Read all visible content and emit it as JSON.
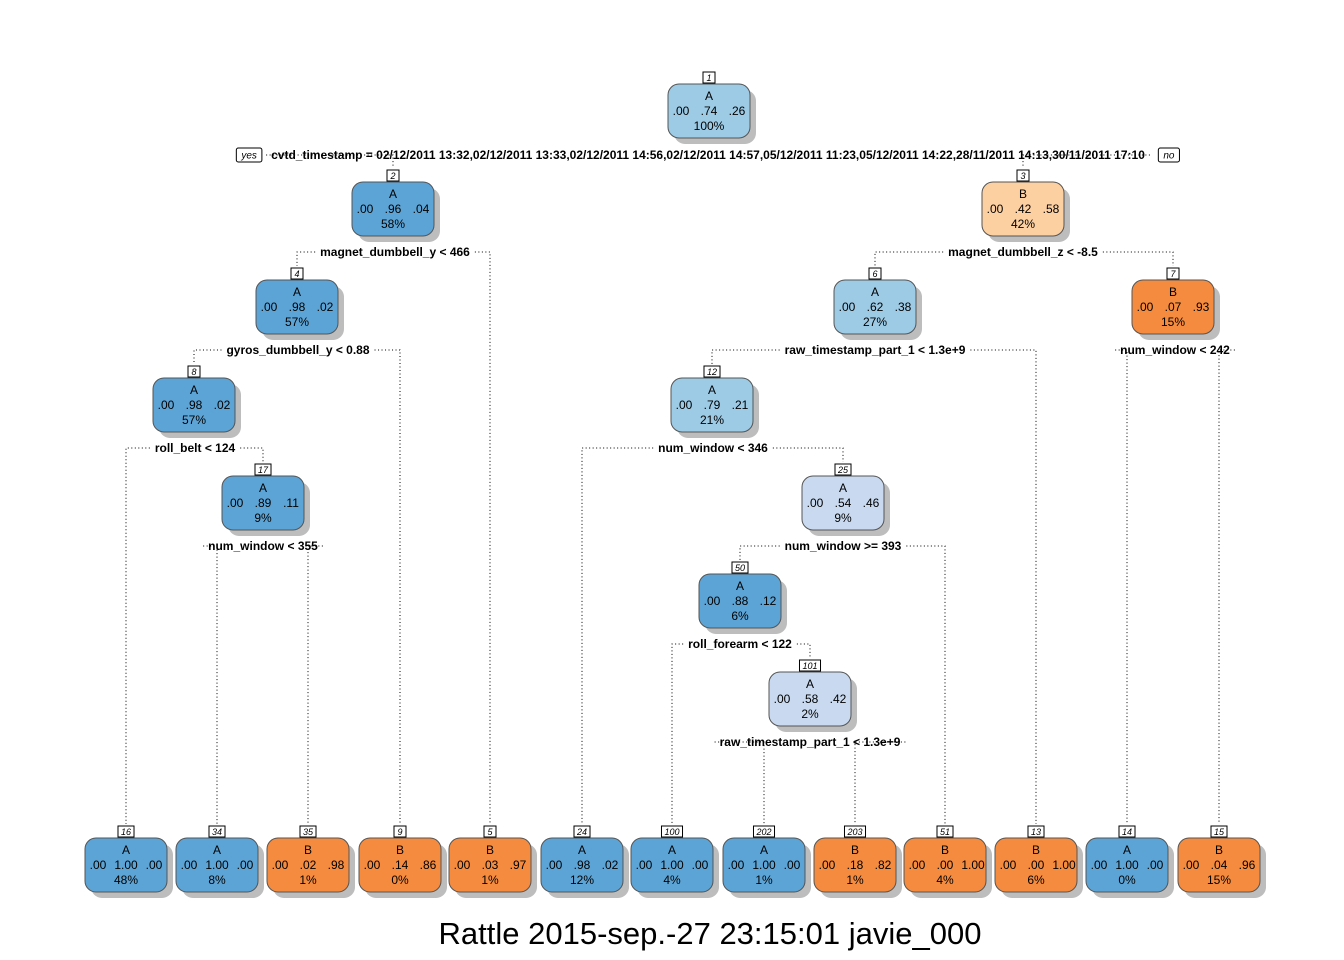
{
  "diagram": {
    "title": "",
    "colors": {
      "blue_dark": "#5da4d6",
      "blue_mid": "#9dcae5",
      "blue_light": "#c9daf0",
      "orange_dark": "#f58b3f",
      "orange_light": "#fdd0a2",
      "edge": "#000000",
      "shadow": "#bdbdbd"
    },
    "yes_label": "yes",
    "no_label": "no",
    "nodes": [
      {
        "id": "1",
        "cls": "A",
        "probs": [
          ".00",
          ".74",
          ".26"
        ],
        "pct": "100%",
        "color": "blue_mid"
      },
      {
        "id": "2",
        "cls": "A",
        "probs": [
          ".00",
          ".96",
          ".04"
        ],
        "pct": "58%",
        "color": "blue_dark"
      },
      {
        "id": "3",
        "cls": "B",
        "probs": [
          ".00",
          ".42",
          ".58"
        ],
        "pct": "42%",
        "color": "orange_light"
      },
      {
        "id": "4",
        "cls": "A",
        "probs": [
          ".00",
          ".98",
          ".02"
        ],
        "pct": "57%",
        "color": "blue_dark"
      },
      {
        "id": "6",
        "cls": "A",
        "probs": [
          ".00",
          ".62",
          ".38"
        ],
        "pct": "27%",
        "color": "blue_mid"
      },
      {
        "id": "7",
        "cls": "B",
        "probs": [
          ".00",
          ".07",
          ".93"
        ],
        "pct": "15%",
        "color": "orange_dark"
      },
      {
        "id": "8",
        "cls": "A",
        "probs": [
          ".00",
          ".98",
          ".02"
        ],
        "pct": "57%",
        "color": "blue_dark"
      },
      {
        "id": "12",
        "cls": "A",
        "probs": [
          ".00",
          ".79",
          ".21"
        ],
        "pct": "21%",
        "color": "blue_mid"
      },
      {
        "id": "17",
        "cls": "A",
        "probs": [
          ".00",
          ".89",
          ".11"
        ],
        "pct": "9%",
        "color": "blue_dark"
      },
      {
        "id": "25",
        "cls": "A",
        "probs": [
          ".00",
          ".54",
          ".46"
        ],
        "pct": "9%",
        "color": "blue_light"
      },
      {
        "id": "50",
        "cls": "A",
        "probs": [
          ".00",
          ".88",
          ".12"
        ],
        "pct": "6%",
        "color": "blue_dark"
      },
      {
        "id": "101",
        "cls": "A",
        "probs": [
          ".00",
          ".58",
          ".42"
        ],
        "pct": "2%",
        "color": "blue_light"
      },
      {
        "id": "16",
        "cls": "A",
        "probs": [
          ".00",
          "1.00",
          ".00"
        ],
        "pct": "48%",
        "color": "blue_dark"
      },
      {
        "id": "34",
        "cls": "A",
        "probs": [
          ".00",
          "1.00",
          ".00"
        ],
        "pct": "8%",
        "color": "blue_dark"
      },
      {
        "id": "35",
        "cls": "B",
        "probs": [
          ".00",
          ".02",
          ".98"
        ],
        "pct": "1%",
        "color": "orange_dark"
      },
      {
        "id": "9",
        "cls": "B",
        "probs": [
          ".00",
          ".14",
          ".86"
        ],
        "pct": "0%",
        "color": "orange_dark"
      },
      {
        "id": "5",
        "cls": "B",
        "probs": [
          ".00",
          ".03",
          ".97"
        ],
        "pct": "1%",
        "color": "orange_dark"
      },
      {
        "id": "24",
        "cls": "A",
        "probs": [
          ".00",
          ".98",
          ".02"
        ],
        "pct": "12%",
        "color": "blue_dark"
      },
      {
        "id": "100",
        "cls": "A",
        "probs": [
          ".00",
          "1.00",
          ".00"
        ],
        "pct": "4%",
        "color": "blue_dark"
      },
      {
        "id": "202",
        "cls": "A",
        "probs": [
          ".00",
          "1.00",
          ".00"
        ],
        "pct": "1%",
        "color": "blue_dark"
      },
      {
        "id": "203",
        "cls": "B",
        "probs": [
          ".00",
          ".18",
          ".82"
        ],
        "pct": "1%",
        "color": "orange_dark"
      },
      {
        "id": "51",
        "cls": "B",
        "probs": [
          ".00",
          ".00",
          "1.00"
        ],
        "pct": "4%",
        "color": "orange_dark"
      },
      {
        "id": "13",
        "cls": "B",
        "probs": [
          ".00",
          ".00",
          "1.00"
        ],
        "pct": "6%",
        "color": "orange_dark"
      },
      {
        "id": "14",
        "cls": "A",
        "probs": [
          ".00",
          "1.00",
          ".00"
        ],
        "pct": "0%",
        "color": "blue_dark"
      },
      {
        "id": "15",
        "cls": "B",
        "probs": [
          ".00",
          ".04",
          ".96"
        ],
        "pct": "15%",
        "color": "orange_dark"
      }
    ],
    "splits": [
      {
        "node": "1",
        "label": "cvtd_timestamp = 02/12/2011 13:32,02/12/2011 13:33,02/12/2011 14:56,02/12/2011 14:57,05/12/2011 11:23,05/12/2011 14:22,28/11/2011 14:13,30/11/2011 17:10",
        "left": "2",
        "right": "3"
      },
      {
        "node": "2",
        "label": "magnet_dumbbell_y < 466",
        "left": "4",
        "right": "5"
      },
      {
        "node": "3",
        "label": "magnet_dumbbell_z < -8.5",
        "left": "6",
        "right": "7"
      },
      {
        "node": "4",
        "label": "gyros_dumbbell_y < 0.88",
        "left": "8",
        "right": "9"
      },
      {
        "node": "6",
        "label": "raw_timestamp_part_1 < 1.3e+9",
        "left": "12",
        "right": "13"
      },
      {
        "node": "7",
        "label": "num_window < 242",
        "left": "14",
        "right": "15"
      },
      {
        "node": "8",
        "label": "roll_belt < 124",
        "left": "16",
        "right": "17"
      },
      {
        "node": "12",
        "label": "num_window < 346",
        "left": "24",
        "right": "25"
      },
      {
        "node": "17",
        "label": "num_window < 355",
        "left": "34",
        "right": "35"
      },
      {
        "node": "25",
        "label": "num_window >= 393",
        "left": "50",
        "right": "51"
      },
      {
        "node": "50",
        "label": "roll_forearm < 122",
        "left": "100",
        "right": "101"
      },
      {
        "node": "101",
        "label": "raw_timestamp_part_1 < 1.3e+9",
        "left": "202",
        "right": "203"
      }
    ]
  },
  "caption": "Rattle 2015-sep.-27 23:15:01 javie_000"
}
